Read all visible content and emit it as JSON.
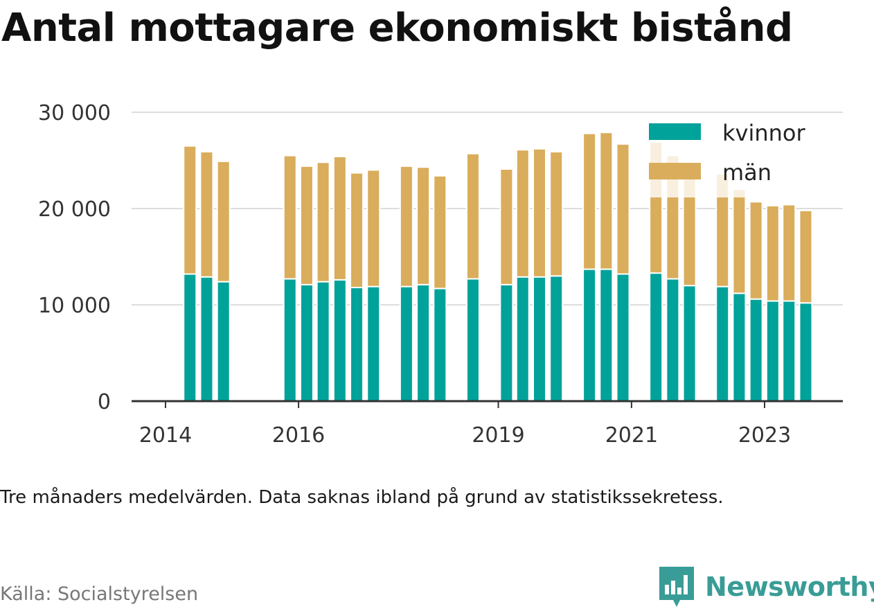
{
  "title": "Antal mottagare ekonomiskt bistånd",
  "subtitle": "Tre månaders medelvärden. Data saknas ibland på grund av statistikssekretess.",
  "source": "Källa: Socialstyrelsen",
  "brand": "Newsworthy",
  "colors": {
    "kvinnor": "#00a29a",
    "man": "#d9ad5b",
    "grid": "#dddddd",
    "axis": "#333333",
    "brand": "#3a9c96"
  },
  "chart_data": {
    "type": "bar",
    "stacked": true,
    "x_ticks": [
      "2014",
      "2016",
      "2019",
      "2021",
      "2023"
    ],
    "y_ticks": [
      "0",
      "10 000",
      "20 000",
      "30 000"
    ],
    "ylim": [
      0,
      30000
    ],
    "xlim": [
      "2014-01-01",
      "2024-06-01"
    ],
    "grid": true,
    "legend_position": "top-right",
    "x": [
      "2014-05-15",
      "2014-08-15",
      "2014-11-15",
      "2015-11-15",
      "2016-02-15",
      "2016-05-15",
      "2016-08-15",
      "2016-11-15",
      "2017-02-15",
      "2017-08-15",
      "2017-11-15",
      "2018-02-15",
      "2018-08-15",
      "2019-02-15",
      "2019-05-15",
      "2019-08-15",
      "2019-11-15",
      "2020-05-15",
      "2020-08-15",
      "2020-11-15",
      "2021-05-15",
      "2021-08-15",
      "2021-11-15",
      "2022-05-15",
      "2022-08-15",
      "2022-11-15",
      "2023-02-15",
      "2023-05-15",
      "2023-08-15"
    ],
    "series": [
      {
        "name": "kvinnor",
        "values": [
          13200,
          12900,
          12400,
          12700,
          12100,
          12400,
          12600,
          11800,
          11900,
          11900,
          12100,
          11700,
          12700,
          12100,
          12900,
          12900,
          13000,
          13700,
          13700,
          13200,
          13300,
          12700,
          12000,
          11900,
          11200,
          10600,
          10400,
          10400,
          10200
        ]
      },
      {
        "name": "män",
        "values": [
          13300,
          13000,
          12500,
          12800,
          12300,
          12400,
          12800,
          11900,
          12100,
          12500,
          12200,
          11700,
          13000,
          12000,
          13200,
          13300,
          12900,
          14100,
          14200,
          13500,
          13600,
          12800,
          12100,
          11700,
          10800,
          10100,
          9900,
          10000,
          9600
        ]
      }
    ]
  }
}
